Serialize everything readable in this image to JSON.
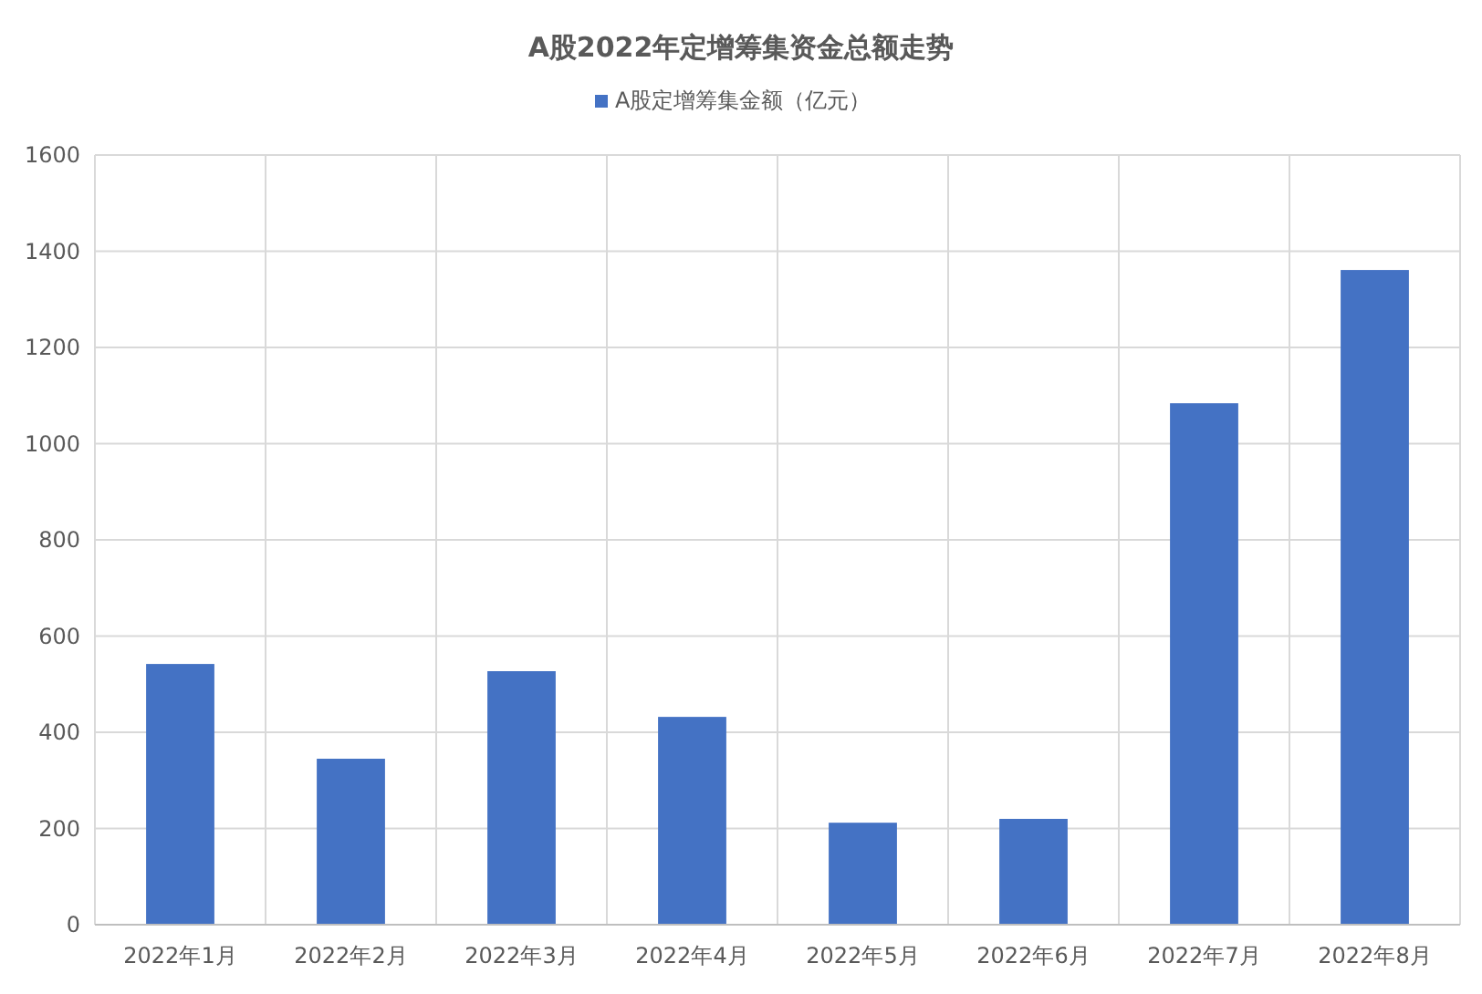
{
  "chart_data": {
    "type": "bar",
    "title": "A股2022年定增筹集资金总额走势",
    "categories": [
      "2022年1月",
      "2022年2月",
      "2022年3月",
      "2022年4月",
      "2022年5月",
      "2022年6月",
      "2022年7月",
      "2022年8月"
    ],
    "series": [
      {
        "name": "A股定增筹集金额（亿元）",
        "color": "#4472c4",
        "values": [
          542,
          345,
          527,
          432,
          212,
          220,
          1084,
          1361
        ]
      }
    ],
    "ylim": [
      0,
      1600
    ],
    "yticks": [
      0,
      200,
      400,
      600,
      800,
      1000,
      1200,
      1400,
      1600
    ],
    "grid": true,
    "legend": "top"
  }
}
